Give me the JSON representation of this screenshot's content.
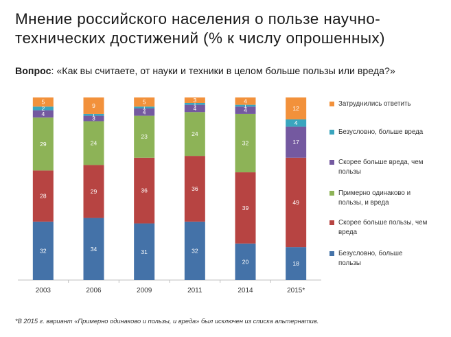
{
  "title": "Мнение российского населения о пользе научно-технических достижений (% к числу опрошенных)",
  "question_label": "Вопрос",
  "question_text": ": «Как вы считаете, от науки и техники в целом больше пользы или вреда?»",
  "footnote": "*В 2015 г. вариант «Примерно одинаково и пользы, и вреда» был исключен из списка альтернатив.",
  "chart_data": {
    "type": "bar",
    "stacked": true,
    "categories": [
      "2003",
      "2006",
      "2009",
      "2011",
      "2014",
      "2015*"
    ],
    "series": [
      {
        "name": "Безусловно,  больше пользы",
        "color": "#4472a8",
        "values": [
          32,
          34,
          31,
          32,
          20,
          18
        ]
      },
      {
        "name": "Скорее больше пользы, чем вреда",
        "color": "#b74442",
        "values": [
          28,
          29,
          36,
          36,
          39,
          49
        ]
      },
      {
        "name": "Примерно одинаково и пользы, и вреда",
        "color": "#8db357",
        "values": [
          29,
          24,
          23,
          24,
          32,
          null
        ]
      },
      {
        "name": "Скорее больше вреда, чем пользы",
        "color": "#7459a0",
        "values": [
          4,
          3,
          4,
          4,
          4,
          17
        ]
      },
      {
        "name": "Безусловно,  больше вреда",
        "color": "#3aa5be",
        "values": [
          2,
          1,
          1,
          1,
          1,
          4
        ]
      },
      {
        "name": "Затруднились ответить",
        "color": "#f2913b",
        "values": [
          5,
          9,
          5,
          3,
          4,
          12
        ]
      }
    ],
    "legend": [
      {
        "label": "Затруднились ответить",
        "color": "#f2913b"
      },
      {
        "label": "Безусловно,  больше вреда",
        "color": "#3aa5be"
      },
      {
        "label": "Скорее больше вреда, чем пользы",
        "color": "#7459a0"
      },
      {
        "label": "Примерно одинаково и пользы, и вреда",
        "color": "#8db357"
      },
      {
        "label": "Скорее больше пользы, чем вреда",
        "color": "#b74442"
      },
      {
        "label": "Безусловно,  больше пользы",
        "color": "#4472a8"
      }
    ],
    "legend_position": "right",
    "grid": false
  }
}
